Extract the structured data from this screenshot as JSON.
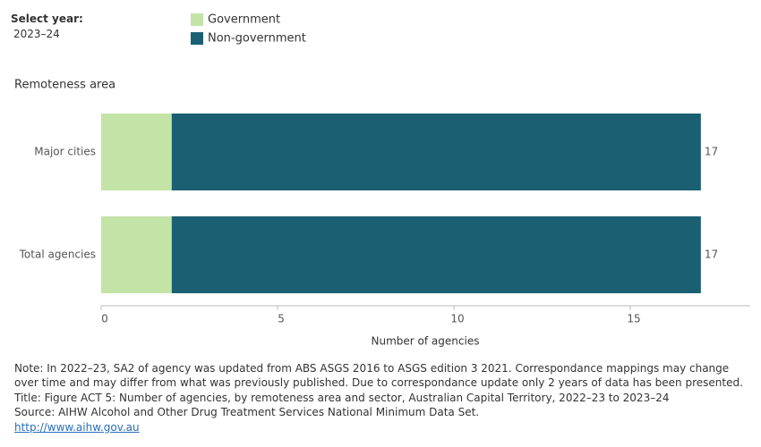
{
  "controls": {
    "label": "Select year:",
    "value": "2023–24"
  },
  "chart_data": {
    "type": "bar",
    "orientation": "horizontal",
    "stacked": true,
    "y_axis_label": "Remoteness area",
    "x_axis_label": "Number of agencies",
    "categories": [
      "Major cities",
      "Total agencies"
    ],
    "series": [
      {
        "name": "Government",
        "color": "#c4e3a6",
        "values": [
          2,
          2
        ]
      },
      {
        "name": "Non-government",
        "color": "#1b5f72",
        "values": [
          15,
          15
        ]
      }
    ],
    "totals": [
      17,
      17
    ],
    "xlim": [
      0,
      18.4
    ],
    "xticks": [
      0,
      5,
      10,
      15
    ]
  },
  "footer": {
    "note": "Note: In 2022–23, SA2 of agency was updated from ABS ASGS 2016 to ASGS edition 3 2021. Correspondance mappings may change over time and may differ from what was previously published. Due to correspondance update only 2 years of data has been presented.",
    "title": "Title: Figure ACT 5: Number of agencies, by remoteness area and sector, Australian Capital Territory, 2022–23 to 2023–24",
    "source": "Source: AIHW Alcohol and Other Drug Treatment Services National Minimum Data Set.",
    "link": "http://www.aihw.gov.au"
  }
}
